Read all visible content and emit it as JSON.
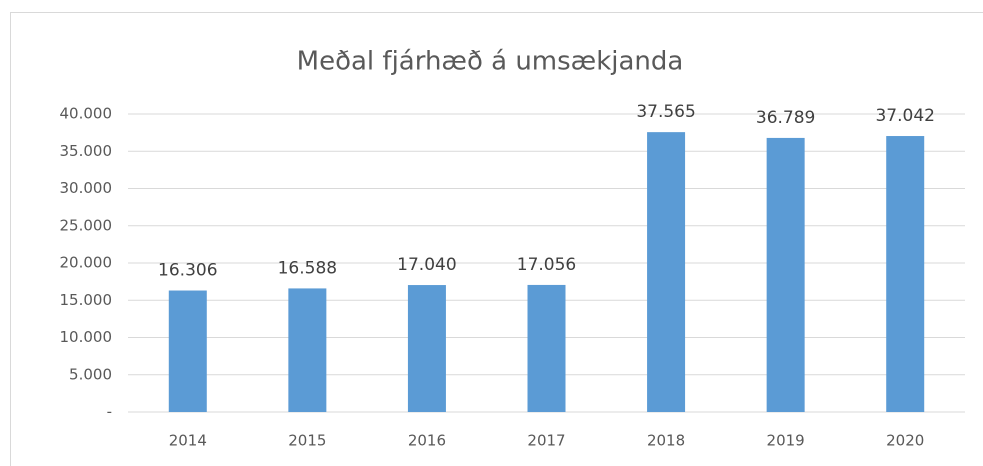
{
  "chart_data": {
    "type": "bar",
    "title": "Meðal fjárhæð á umsækjanda",
    "categories": [
      "2014",
      "2015",
      "2016",
      "2017",
      "2018",
      "2019",
      "2020"
    ],
    "values": [
      16306,
      16588,
      17040,
      17056,
      37565,
      36789,
      37042
    ],
    "value_labels": [
      "16.306",
      "16.588",
      "17.040",
      "17.056",
      "37.565",
      "36.789",
      "37.042"
    ],
    "color": "#5b9bd5",
    "ylim": [
      0,
      40000
    ],
    "yticks": [
      {
        "value": 0,
        "label": "-"
      },
      {
        "value": 5000,
        "label": "5.000"
      },
      {
        "value": 10000,
        "label": "10.000"
      },
      {
        "value": 15000,
        "label": "15.000"
      },
      {
        "value": 20000,
        "label": "20.000"
      },
      {
        "value": 25000,
        "label": "25.000"
      },
      {
        "value": 30000,
        "label": "30.000"
      },
      {
        "value": 35000,
        "label": "35.000"
      },
      {
        "value": 40000,
        "label": "40.000"
      }
    ],
    "grid": true
  }
}
